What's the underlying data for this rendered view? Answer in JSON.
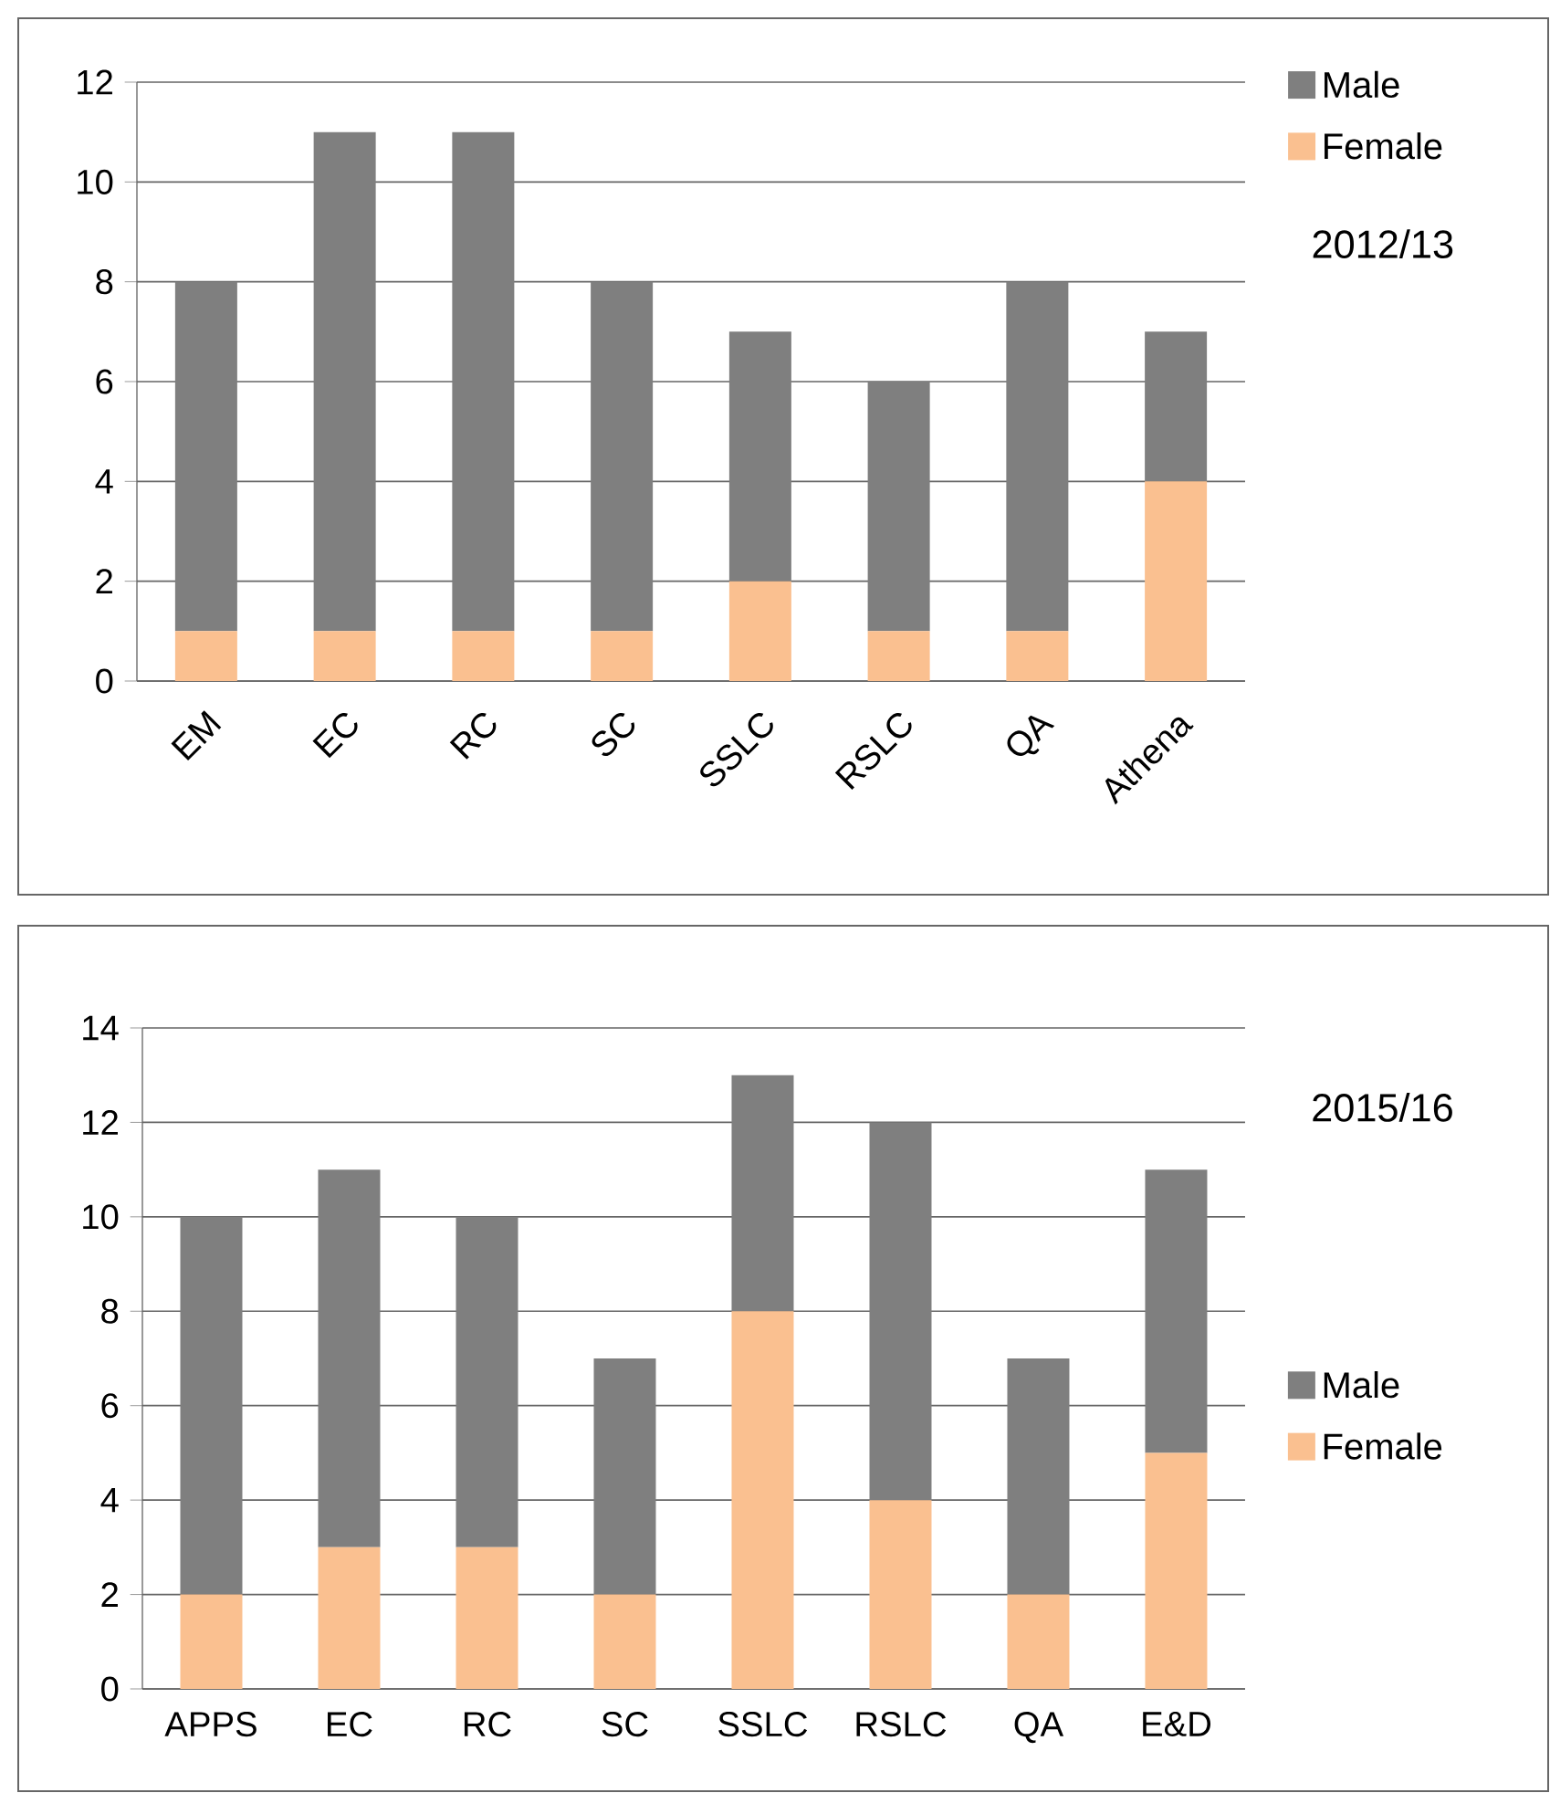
{
  "chart_data": [
    {
      "type": "bar",
      "stacked": true,
      "categories": [
        "EM",
        "EC",
        "RC",
        "SC",
        "SSLC",
        "RSLC",
        "QA",
        "Athena"
      ],
      "series": [
        {
          "name": "Female",
          "color": "#fac090",
          "values": [
            1,
            1,
            1,
            1,
            2,
            1,
            1,
            4
          ]
        },
        {
          "name": "Male",
          "color": "#7f7f7f",
          "values": [
            7,
            10,
            10,
            7,
            5,
            5,
            7,
            3
          ]
        }
      ],
      "ylim": [
        0,
        12
      ],
      "yticks": [
        0,
        2,
        4,
        6,
        8,
        10,
        12
      ],
      "grid": "y",
      "legend": "top right",
      "annotations": [
        "2012/13"
      ]
    },
    {
      "type": "bar",
      "stacked": true,
      "categories": [
        "APPS",
        "EC",
        "RC",
        "SC",
        "SSLC",
        "RSLC",
        "QA",
        "E&D"
      ],
      "series": [
        {
          "name": "Female",
          "color": "#fac090",
          "values": [
            2,
            3,
            3,
            2,
            8,
            4,
            2,
            5
          ]
        },
        {
          "name": "Male",
          "color": "#7f7f7f",
          "values": [
            8,
            8,
            7,
            5,
            5,
            8,
            5,
            6
          ]
        }
      ],
      "ylim": [
        0,
        14
      ],
      "yticks": [
        0,
        2,
        4,
        6,
        8,
        10,
        12,
        14
      ],
      "grid": "y",
      "legend": "right",
      "annotations": [
        "2015/16"
      ]
    }
  ]
}
